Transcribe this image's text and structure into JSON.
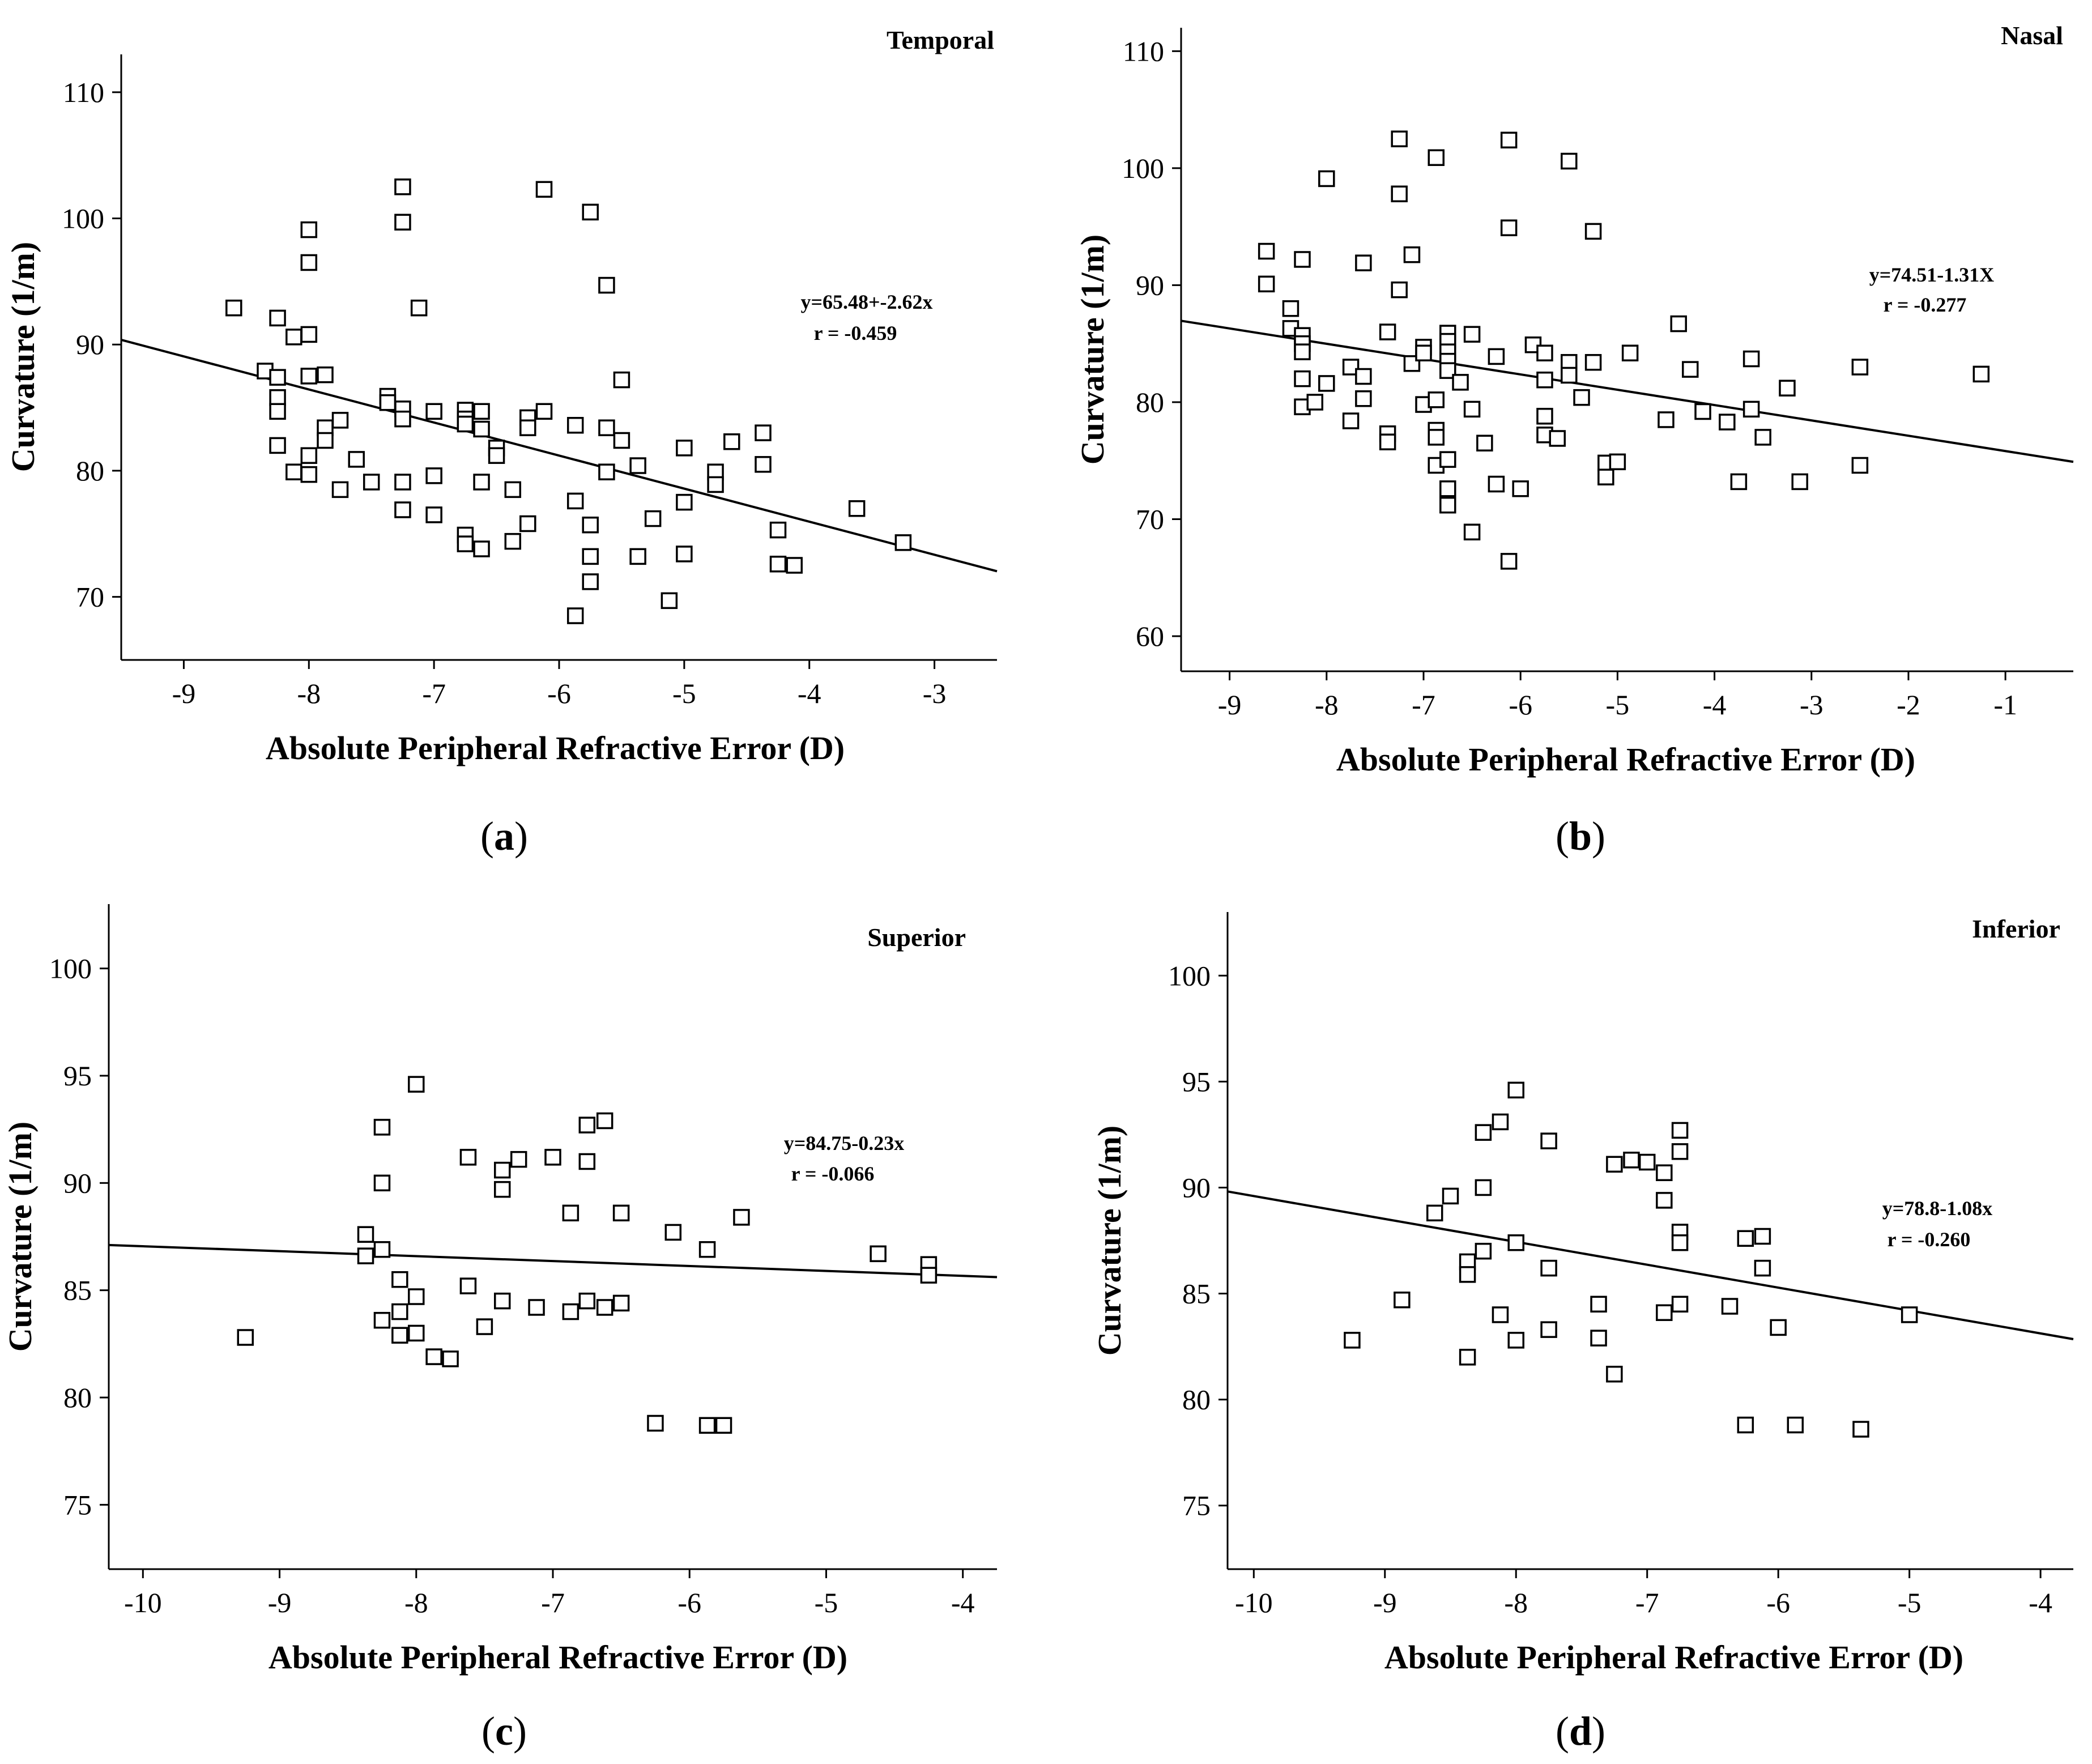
{
  "chart_data": [
    {
      "type": "scatter",
      "panel_label": "a",
      "corner_label": "Temporal",
      "xlabel": "Absolute Peripheral Refractive Error (D)",
      "ylabel": "Curvature (1/m)",
      "xlim": [
        -9.5,
        -2.5
      ],
      "ylim": [
        65,
        113
      ],
      "xticks": [
        -9,
        -8,
        -7,
        -6,
        -5,
        -4,
        -3
      ],
      "yticks": [
        70,
        80,
        90,
        100,
        110
      ],
      "equation": "y=65.48+-2.62x",
      "r_text": "r = -0.459",
      "fit": {
        "intercept": 65.48,
        "slope": -2.62
      },
      "points": [
        [
          -8.6,
          92.9
        ],
        [
          -8.35,
          87.9
        ],
        [
          -8.25,
          92.1
        ],
        [
          -8.25,
          87.4
        ],
        [
          -8.25,
          85.8
        ],
        [
          -8.25,
          84.7
        ],
        [
          -8.25,
          82.0
        ],
        [
          -8.12,
          90.6
        ],
        [
          -8.12,
          79.9
        ],
        [
          -8.0,
          99.1
        ],
        [
          -8.0,
          96.5
        ],
        [
          -8.0,
          90.8
        ],
        [
          -8.0,
          87.5
        ],
        [
          -8.0,
          81.2
        ],
        [
          -8.0,
          79.7
        ],
        [
          -7.87,
          87.6
        ],
        [
          -7.87,
          83.4
        ],
        [
          -7.87,
          82.4
        ],
        [
          -7.75,
          84.0
        ],
        [
          -7.75,
          78.5
        ],
        [
          -7.62,
          80.9
        ],
        [
          -7.5,
          79.1
        ],
        [
          -7.37,
          85.9
        ],
        [
          -7.37,
          85.4
        ],
        [
          -7.25,
          102.5
        ],
        [
          -7.25,
          99.7
        ],
        [
          -7.25,
          84.9
        ],
        [
          -7.25,
          84.1
        ],
        [
          -7.25,
          79.1
        ],
        [
          -7.25,
          76.9
        ],
        [
          -7.12,
          92.9
        ],
        [
          -7.0,
          84.7
        ],
        [
          -7.0,
          79.6
        ],
        [
          -7.0,
          76.5
        ],
        [
          -6.75,
          84.8
        ],
        [
          -6.75,
          84.1
        ],
        [
          -6.75,
          83.7
        ],
        [
          -6.75,
          74.9
        ],
        [
          -6.75,
          74.2
        ],
        [
          -6.62,
          84.7
        ],
        [
          -6.62,
          83.3
        ],
        [
          -6.62,
          79.1
        ],
        [
          -6.62,
          73.8
        ],
        [
          -6.5,
          81.8
        ],
        [
          -6.5,
          81.2
        ],
        [
          -6.37,
          78.5
        ],
        [
          -6.37,
          74.4
        ],
        [
          -6.25,
          84.2
        ],
        [
          -6.25,
          83.4
        ],
        [
          -6.25,
          75.8
        ],
        [
          -6.12,
          102.3
        ],
        [
          -6.12,
          84.7
        ],
        [
          -5.87,
          83.6
        ],
        [
          -5.87,
          77.6
        ],
        [
          -5.87,
          68.5
        ],
        [
          -5.75,
          100.5
        ],
        [
          -5.75,
          75.7
        ],
        [
          -5.75,
          73.2
        ],
        [
          -5.75,
          71.2
        ],
        [
          -5.62,
          94.7
        ],
        [
          -5.62,
          83.4
        ],
        [
          -5.62,
          79.9
        ],
        [
          -5.5,
          87.2
        ],
        [
          -5.5,
          82.4
        ],
        [
          -5.37,
          80.4
        ],
        [
          -5.37,
          73.2
        ],
        [
          -5.25,
          76.2
        ],
        [
          -5.12,
          69.7
        ],
        [
          -5.0,
          81.8
        ],
        [
          -5.0,
          77.5
        ],
        [
          -5.0,
          73.4
        ],
        [
          -4.75,
          79.9
        ],
        [
          -4.75,
          78.9
        ],
        [
          -4.62,
          82.3
        ],
        [
          -4.37,
          83.0
        ],
        [
          -4.37,
          80.5
        ],
        [
          -4.25,
          75.3
        ],
        [
          -4.25,
          72.6
        ],
        [
          -4.12,
          72.5
        ],
        [
          -3.62,
          77.0
        ],
        [
          -3.25,
          74.3
        ]
      ]
    },
    {
      "type": "scatter",
      "panel_label": "b",
      "corner_label": "Nasal",
      "xlabel": "Absolute Peripheral Refractive Error (D)",
      "ylabel": "Curvature (1/m)",
      "xlim": [
        -9.5,
        -0.3
      ],
      "ylim": [
        57,
        112
      ],
      "xticks": [
        -9,
        -8,
        -7,
        -6,
        -5,
        -4,
        -3,
        -2,
        -1
      ],
      "yticks": [
        60,
        70,
        80,
        90,
        100,
        110
      ],
      "equation": "y=74.51-1.31X",
      "r_text": "r = -0.277",
      "fit": {
        "intercept": 74.51,
        "slope": -1.31
      },
      "points": [
        [
          -8.62,
          92.9
        ],
        [
          -8.62,
          90.1
        ],
        [
          -8.37,
          88.0
        ],
        [
          -8.37,
          86.3
        ],
        [
          -8.25,
          92.2
        ],
        [
          -8.25,
          85.7
        ],
        [
          -8.25,
          85.0
        ],
        [
          -8.25,
          84.3
        ],
        [
          -8.25,
          82.0
        ],
        [
          -8.25,
          79.6
        ],
        [
          -8.12,
          80.0
        ],
        [
          -8.0,
          99.1
        ],
        [
          -8.0,
          81.6
        ],
        [
          -7.75,
          83.0
        ],
        [
          -7.75,
          78.4
        ],
        [
          -7.62,
          91.9
        ],
        [
          -7.62,
          82.2
        ],
        [
          -7.62,
          80.3
        ],
        [
          -7.37,
          86.0
        ],
        [
          -7.37,
          77.3
        ],
        [
          -7.37,
          76.6
        ],
        [
          -7.25,
          102.5
        ],
        [
          -7.25,
          97.8
        ],
        [
          -7.25,
          89.6
        ],
        [
          -7.12,
          92.6
        ],
        [
          -7.12,
          83.3
        ],
        [
          -7.0,
          84.7
        ],
        [
          -7.0,
          84.2
        ],
        [
          -7.0,
          79.8
        ],
        [
          -6.87,
          100.9
        ],
        [
          -6.87,
          80.2
        ],
        [
          -6.87,
          77.6
        ],
        [
          -6.87,
          77.0
        ],
        [
          -6.87,
          74.6
        ],
        [
          -6.75,
          85.9
        ],
        [
          -6.75,
          85.2
        ],
        [
          -6.75,
          84.3
        ],
        [
          -6.75,
          83.5
        ],
        [
          -6.75,
          82.7
        ],
        [
          -6.75,
          75.1
        ],
        [
          -6.75,
          72.6
        ],
        [
          -6.75,
          71.2
        ],
        [
          -6.62,
          81.7
        ],
        [
          -6.5,
          85.8
        ],
        [
          -6.5,
          79.4
        ],
        [
          -6.5,
          68.9
        ],
        [
          -6.37,
          76.5
        ],
        [
          -6.25,
          83.9
        ],
        [
          -6.25,
          73.0
        ],
        [
          -6.12,
          102.4
        ],
        [
          -6.12,
          94.9
        ],
        [
          -6.12,
          66.4
        ],
        [
          -6.0,
          72.6
        ],
        [
          -5.87,
          84.9
        ],
        [
          -5.75,
          84.2
        ],
        [
          -5.75,
          81.9
        ],
        [
          -5.75,
          78.8
        ],
        [
          -5.75,
          77.2
        ],
        [
          -5.62,
          76.9
        ],
        [
          -5.5,
          100.6
        ],
        [
          -5.5,
          83.4
        ],
        [
          -5.5,
          82.3
        ],
        [
          -5.37,
          80.4
        ],
        [
          -5.25,
          94.6
        ],
        [
          -5.25,
          83.4
        ],
        [
          -5.12,
          74.8
        ],
        [
          -5.12,
          73.6
        ],
        [
          -5.0,
          74.9
        ],
        [
          -4.87,
          84.2
        ],
        [
          -4.5,
          78.5
        ],
        [
          -4.37,
          86.7
        ],
        [
          -4.25,
          82.8
        ],
        [
          -4.12,
          79.2
        ],
        [
          -3.87,
          78.3
        ],
        [
          -3.75,
          73.2
        ],
        [
          -3.62,
          83.7
        ],
        [
          -3.62,
          79.4
        ],
        [
          -3.5,
          77.0
        ],
        [
          -3.25,
          81.2
        ],
        [
          -3.12,
          73.2
        ],
        [
          -2.5,
          83.0
        ],
        [
          -2.5,
          74.6
        ],
        [
          -1.25,
          82.4
        ]
      ]
    },
    {
      "type": "scatter",
      "panel_label": "c",
      "corner_label": "Superior",
      "xlabel": "Absolute Peripheral Refractive Error (D)",
      "ylabel": "Curvature (1/m)",
      "xlim": [
        -10.25,
        -3.75
      ],
      "ylim": [
        72,
        103
      ],
      "xticks": [
        -10,
        -9,
        -8,
        -7,
        -6,
        -5,
        -4
      ],
      "yticks": [
        75,
        80,
        85,
        90,
        95,
        100
      ],
      "equation": "y=84.75-0.23x",
      "r_text": "r = -0.066",
      "fit": {
        "intercept": 84.75,
        "slope": -0.23
      },
      "points": [
        [
          -9.25,
          82.8
        ],
        [
          -8.37,
          87.6
        ],
        [
          -8.37,
          86.6
        ],
        [
          -8.25,
          92.6
        ],
        [
          -8.25,
          90.0
        ],
        [
          -8.25,
          86.9
        ],
        [
          -8.25,
          83.6
        ],
        [
          -8.12,
          85.5
        ],
        [
          -8.12,
          84.0
        ],
        [
          -8.12,
          82.9
        ],
        [
          -8.0,
          94.6
        ],
        [
          -8.0,
          84.7
        ],
        [
          -8.0,
          83.0
        ],
        [
          -7.87,
          81.9
        ],
        [
          -7.75,
          81.8
        ],
        [
          -7.62,
          91.2
        ],
        [
          -7.62,
          85.2
        ],
        [
          -7.5,
          83.3
        ],
        [
          -7.37,
          90.6
        ],
        [
          -7.37,
          89.7
        ],
        [
          -7.37,
          84.5
        ],
        [
          -7.25,
          91.1
        ],
        [
          -7.12,
          84.2
        ],
        [
          -7.0,
          91.2
        ],
        [
          -6.87,
          88.6
        ],
        [
          -6.87,
          84.0
        ],
        [
          -6.75,
          92.7
        ],
        [
          -6.75,
          91.0
        ],
        [
          -6.75,
          84.5
        ],
        [
          -6.62,
          92.9
        ],
        [
          -6.62,
          84.2
        ],
        [
          -6.5,
          88.6
        ],
        [
          -6.5,
          84.4
        ],
        [
          -6.12,
          87.7
        ],
        [
          -6.25,
          78.8
        ],
        [
          -5.87,
          86.9
        ],
        [
          -5.87,
          78.7
        ],
        [
          -5.75,
          78.7
        ],
        [
          -5.62,
          88.4
        ],
        [
          -4.62,
          86.7
        ],
        [
          -4.25,
          86.2
        ],
        [
          -4.25,
          85.7
        ]
      ]
    },
    {
      "type": "scatter",
      "panel_label": "d",
      "corner_label": "Inferior",
      "xlabel": "Absolute Peripheral Refractive Error (D)",
      "ylabel": "Curvature (1/m)",
      "xlim": [
        -10.2,
        -3.75
      ],
      "ylim": [
        72,
        103
      ],
      "xticks": [
        -10,
        -9,
        -8,
        -7,
        -6,
        -5,
        -4
      ],
      "yticks": [
        75,
        80,
        85,
        90,
        95,
        100
      ],
      "equation": "y=78.8-1.08x",
      "r_text": "r = -0.260",
      "fit": {
        "intercept": 78.8,
        "slope": -1.08
      },
      "points": [
        [
          -9.25,
          82.8
        ],
        [
          -8.87,
          84.7
        ],
        [
          -8.62,
          88.8
        ],
        [
          -8.5,
          89.6
        ],
        [
          -8.37,
          86.5
        ],
        [
          -8.37,
          85.9
        ],
        [
          -8.37,
          82.0
        ],
        [
          -8.25,
          92.6
        ],
        [
          -8.25,
          90.0
        ],
        [
          -8.25,
          87.0
        ],
        [
          -8.12,
          93.1
        ],
        [
          -8.12,
          84.0
        ],
        [
          -8.0,
          94.6
        ],
        [
          -8.0,
          87.4
        ],
        [
          -8.0,
          82.8
        ],
        [
          -7.75,
          92.2
        ],
        [
          -7.75,
          86.2
        ],
        [
          -7.75,
          83.3
        ],
        [
          -7.37,
          84.5
        ],
        [
          -7.37,
          82.9
        ],
        [
          -7.25,
          91.1
        ],
        [
          -7.25,
          81.2
        ],
        [
          -7.12,
          91.3
        ],
        [
          -7.0,
          91.2
        ],
        [
          -6.87,
          90.7
        ],
        [
          -6.87,
          89.4
        ],
        [
          -6.87,
          84.1
        ],
        [
          -6.75,
          92.7
        ],
        [
          -6.75,
          91.7
        ],
        [
          -6.75,
          87.9
        ],
        [
          -6.75,
          87.4
        ],
        [
          -6.75,
          84.5
        ],
        [
          -6.37,
          84.4
        ],
        [
          -6.25,
          87.6
        ],
        [
          -6.25,
          78.8
        ],
        [
          -6.12,
          87.7
        ],
        [
          -6.12,
          86.2
        ],
        [
          -6.0,
          83.4
        ],
        [
          -5.87,
          78.8
        ],
        [
          -5.37,
          78.6
        ],
        [
          -5.0,
          84.0
        ]
      ]
    }
  ]
}
